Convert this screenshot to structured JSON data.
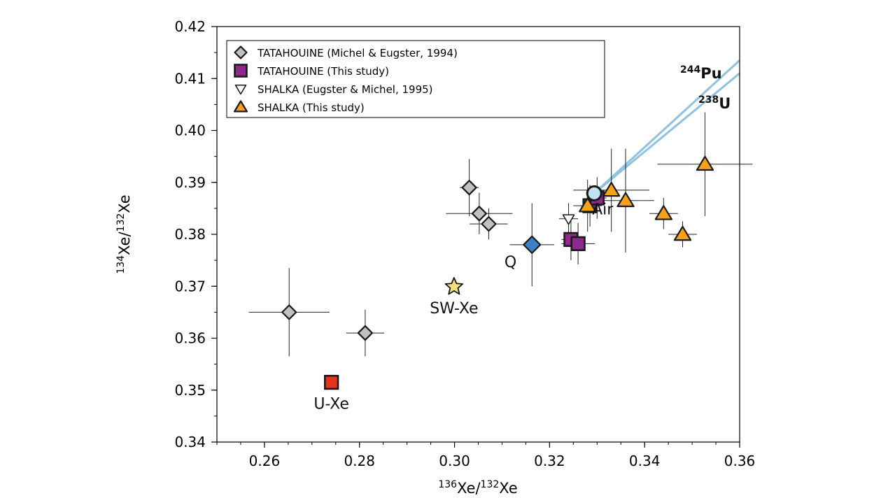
{
  "chart_data": {
    "type": "scatter",
    "xlim": [
      0.25,
      0.36
    ],
    "ylim": [
      0.34,
      0.42
    ],
    "xticks": [
      "0.26",
      "0.28",
      "0.30",
      "0.32",
      "0.34",
      "0.36"
    ],
    "yticks": [
      "0.34",
      "0.35",
      "0.36",
      "0.37",
      "0.38",
      "0.39",
      "0.40",
      "0.41",
      "0.42"
    ],
    "xlabel": {
      "sup1": "136",
      "mid": "Xe/",
      "sup2": "132",
      "end": "Xe"
    },
    "ylabel": {
      "sup1": "134",
      "mid": "Xe/",
      "sup2": "132",
      "end": "Xe"
    },
    "legend": [
      {
        "label": "TATAHOUINE (Michel & Eugster, 1994)",
        "marker": "diamond",
        "color": "#c0c0c0"
      },
      {
        "label": "TATAHOUINE (This study)",
        "marker": "square",
        "color": "#8e2a8e"
      },
      {
        "label": "SHALKA (Eugster & Michel, 1995)",
        "marker": "triangle-down",
        "color": "#ffffff"
      },
      {
        "label": "SHALKA (This study)",
        "marker": "triangle-up",
        "color": "#f5a21a"
      }
    ],
    "series": [
      {
        "name": "TATAHOUINE (Michel & Eugster, 1994)",
        "marker": "diamond",
        "color": "#c0c0c0",
        "points": [
          {
            "x": 0.2652,
            "y": 0.365,
            "xerr": 0.0085,
            "yerr": 0.0085
          },
          {
            "x": 0.2812,
            "y": 0.361,
            "xerr": 0.004,
            "yerr": 0.0045
          },
          {
            "x": 0.3031,
            "y": 0.389,
            "xerr": 0.002,
            "yerr": 0.0055
          },
          {
            "x": 0.3052,
            "y": 0.384,
            "xerr": 0.007,
            "yerr": 0.004
          },
          {
            "x": 0.3072,
            "y": 0.382,
            "xerr": 0.004,
            "yerr": 0.003
          }
        ]
      },
      {
        "name": "TATAHOUINE (This study)",
        "marker": "square",
        "color": "#8e2a8e",
        "points": [
          {
            "x": 0.3245,
            "y": 0.379,
            "xerr": 0.002,
            "yerr": 0.004
          },
          {
            "x": 0.326,
            "y": 0.3782,
            "xerr": 0.0035,
            "yerr": 0.004
          },
          {
            "x": 0.3285,
            "y": 0.3855,
            "xerr": 0.002,
            "yerr": 0.004
          },
          {
            "x": 0.33,
            "y": 0.387,
            "xerr": 0.002,
            "yerr": 0.004
          }
        ]
      },
      {
        "name": "SHALKA (Eugster & Michel, 1995)",
        "marker": "triangle-down",
        "color": "#ffffff",
        "points": [
          {
            "x": 0.324,
            "y": 0.383,
            "xerr": 0.002,
            "yerr": 0.003
          }
        ]
      },
      {
        "name": "SHALKA (This study)",
        "marker": "triangle-up",
        "color": "#f5a21a",
        "points": [
          {
            "x": 0.328,
            "y": 0.3855,
            "xerr": 0.003,
            "yerr": 0.005
          },
          {
            "x": 0.333,
            "y": 0.3885,
            "xerr": 0.008,
            "yerr": 0.008
          },
          {
            "x": 0.336,
            "y": 0.3865,
            "xerr": 0.006,
            "yerr": 0.01
          },
          {
            "x": 0.344,
            "y": 0.384,
            "xerr": 0.003,
            "yerr": 0.003
          },
          {
            "x": 0.348,
            "y": 0.38,
            "xerr": 0.003,
            "yerr": 0.0025
          },
          {
            "x": 0.3527,
            "y": 0.3935,
            "xerr": 0.01,
            "yerr": 0.01
          }
        ]
      }
    ],
    "references": [
      {
        "name": "U-Xe",
        "label": "U-Xe",
        "marker": "square",
        "color": "#e8331c",
        "x": 0.2741,
        "y": 0.3515,
        "xerr": 0,
        "yerr": 0,
        "label_pos": "below"
      },
      {
        "name": "SW-Xe",
        "label": "SW-Xe",
        "marker": "star",
        "color": "#f7e27a",
        "x": 0.2999,
        "y": 0.3699,
        "xerr": 0,
        "yerr": 0,
        "label_pos": "below"
      },
      {
        "name": "Q",
        "label": "Q",
        "marker": "diamond",
        "color": "#3b82c4",
        "x": 0.3163,
        "y": 0.378,
        "xerr": 0.0047,
        "yerr": 0.008,
        "label_pos": "left-below"
      },
      {
        "name": "Air",
        "label": "Air",
        "marker": "circle",
        "color": "#bfe3f2",
        "x": 0.3294,
        "y": 0.3879,
        "xerr": 0,
        "yerr": 0,
        "label_pos": "below"
      }
    ],
    "mixing_lines": [
      {
        "name": "244Pu",
        "label_sup": "244",
        "label_text": "Pu",
        "color": "#8fc1e0",
        "x0": 0.3294,
        "y0": 0.3879,
        "x1": 0.36,
        "y1": 0.4135
      },
      {
        "name": "238U",
        "label_sup": "238",
        "label_text": "U",
        "color": "#8fc1e0",
        "x0": 0.3294,
        "y0": 0.3879,
        "x1": 0.36,
        "y1": 0.411
      }
    ]
  }
}
